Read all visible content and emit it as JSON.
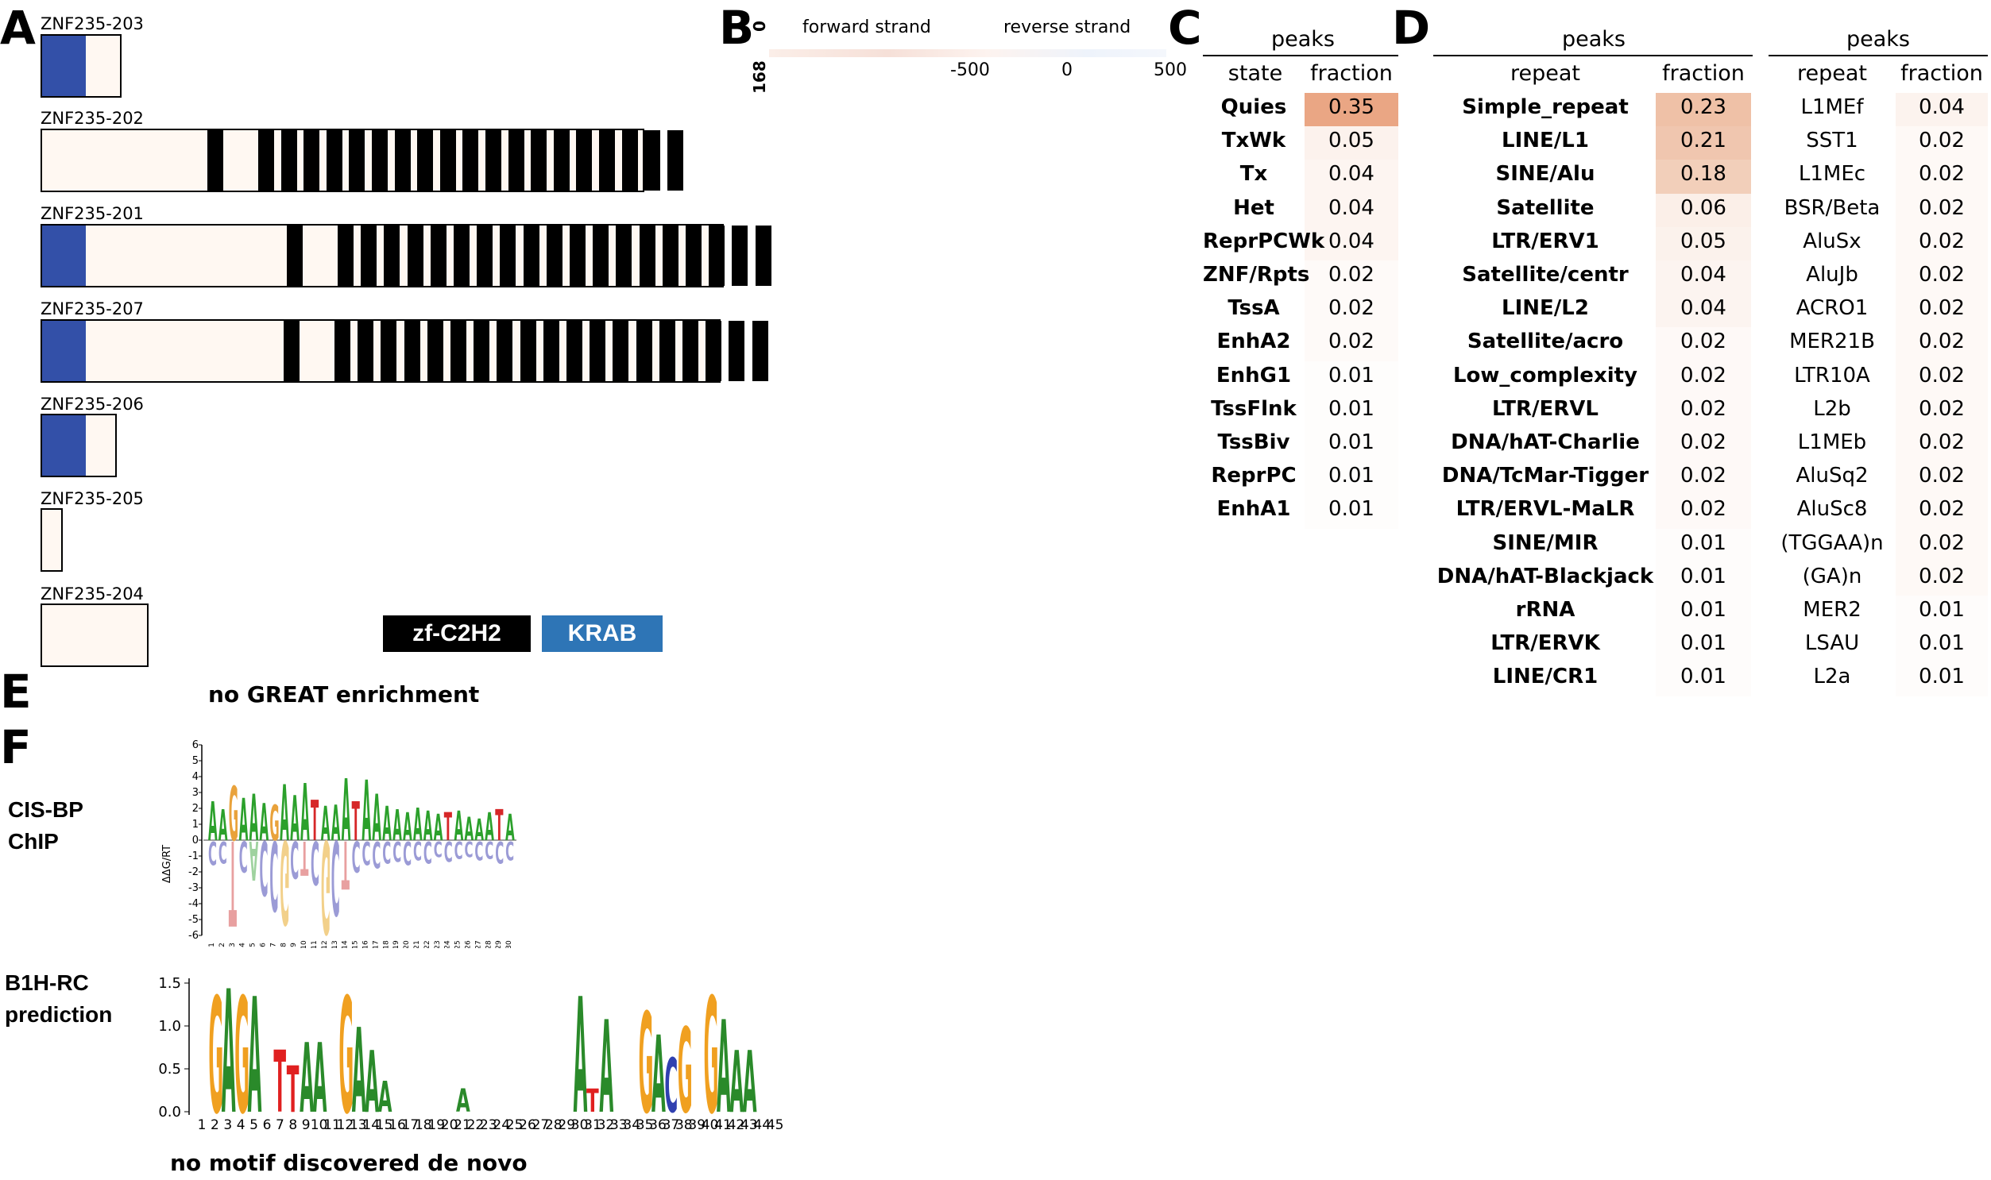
{
  "panels": {
    "A": "A",
    "B": "B",
    "C": "C",
    "D": "D",
    "E": "E",
    "F": "F"
  },
  "isoforms": [
    {
      "name": "ZNF235-203"
    },
    {
      "name": "ZNF235-202"
    },
    {
      "name": "ZNF235-201"
    },
    {
      "name": "ZNF235-207"
    },
    {
      "name": "ZNF235-206"
    },
    {
      "name": "ZNF235-205"
    },
    {
      "name": "ZNF235-204"
    }
  ],
  "legend": {
    "zf": "zf-C2H2",
    "krab": "KRAB",
    "zf_color": "#000000",
    "krab_color": "#2e75b6"
  },
  "panel_b": {
    "forward": "forward strand",
    "reverse": "reverse strand",
    "ticks": [
      "-500",
      "0",
      "500"
    ],
    "y_top": "0",
    "y_bottom": "168"
  },
  "panel_c": {
    "title": "peaks",
    "col1": "state",
    "col2": "fraction",
    "rows": [
      {
        "label": "Quies",
        "value": "0.35"
      },
      {
        "label": "TxWk",
        "value": "0.05"
      },
      {
        "label": "Tx",
        "value": "0.04"
      },
      {
        "label": "Het",
        "value": "0.04"
      },
      {
        "label": "ReprPCWk",
        "value": "0.04"
      },
      {
        "label": "ZNF/Rpts",
        "value": "0.02"
      },
      {
        "label": "TssA",
        "value": "0.02"
      },
      {
        "label": "EnhA2",
        "value": "0.02"
      },
      {
        "label": "EnhG1",
        "value": "0.01"
      },
      {
        "label": "TssFlnk",
        "value": "0.01"
      },
      {
        "label": "TssBiv",
        "value": "0.01"
      },
      {
        "label": "ReprPC",
        "value": "0.01"
      },
      {
        "label": "EnhA1",
        "value": "0.01"
      }
    ]
  },
  "panel_d1": {
    "title": "peaks",
    "col1": "repeat",
    "col2": "fraction",
    "rows": [
      {
        "label": "Simple_repeat",
        "value": "0.23"
      },
      {
        "label": "LINE/L1",
        "value": "0.21"
      },
      {
        "label": "SINE/Alu",
        "value": "0.18"
      },
      {
        "label": "Satellite",
        "value": "0.06"
      },
      {
        "label": "LTR/ERV1",
        "value": "0.05"
      },
      {
        "label": "Satellite/centr",
        "value": "0.04"
      },
      {
        "label": "LINE/L2",
        "value": "0.04"
      },
      {
        "label": "Satellite/acro",
        "value": "0.02"
      },
      {
        "label": "Low_complexity",
        "value": "0.02"
      },
      {
        "label": "LTR/ERVL",
        "value": "0.02"
      },
      {
        "label": "DNA/hAT-Charlie",
        "value": "0.02"
      },
      {
        "label": "DNA/TcMar-Tigger",
        "value": "0.02"
      },
      {
        "label": "LTR/ERVL-MaLR",
        "value": "0.02"
      },
      {
        "label": "SINE/MIR",
        "value": "0.01"
      },
      {
        "label": "DNA/hAT-Blackjack",
        "value": "0.01"
      },
      {
        "label": "rRNA",
        "value": "0.01"
      },
      {
        "label": "LTR/ERVK",
        "value": "0.01"
      },
      {
        "label": "LINE/CR1",
        "value": "0.01"
      }
    ]
  },
  "panel_d2": {
    "title": "peaks",
    "col1": "repeat",
    "col2": "fraction",
    "rows": [
      {
        "label": "L1MEf",
        "value": "0.04"
      },
      {
        "label": "SST1",
        "value": "0.02"
      },
      {
        "label": "L1MEc",
        "value": "0.02"
      },
      {
        "label": "BSR/Beta",
        "value": "0.02"
      },
      {
        "label": "AluSx",
        "value": "0.02"
      },
      {
        "label": "AluJb",
        "value": "0.02"
      },
      {
        "label": "ACRO1",
        "value": "0.02"
      },
      {
        "label": "MER21B",
        "value": "0.02"
      },
      {
        "label": "LTR10A",
        "value": "0.02"
      },
      {
        "label": "L2b",
        "value": "0.02"
      },
      {
        "label": "L1MEb",
        "value": "0.02"
      },
      {
        "label": "AluSq2",
        "value": "0.02"
      },
      {
        "label": "AluSc8",
        "value": "0.02"
      },
      {
        "label": "(TGGAA)n",
        "value": "0.02"
      },
      {
        "label": "(GA)n",
        "value": "0.02"
      },
      {
        "label": "MER2",
        "value": "0.01"
      },
      {
        "label": "LSAU",
        "value": "0.01"
      },
      {
        "label": "L2a",
        "value": "0.01"
      }
    ]
  },
  "panel_e": {
    "text": "no GREAT enrichment"
  },
  "panel_f": {
    "cisbp_label_1": "CIS-BP",
    "cisbp_label_2": "ChIP",
    "cisbp_ylabel": "ΔΔG/RT",
    "cisbp_yticks": [
      "6",
      "5",
      "4",
      "3",
      "2",
      "1",
      "0",
      "-1",
      "-2",
      "-3",
      "-4",
      "-5",
      "-6"
    ],
    "b1h_label_1": "B1H-RC",
    "b1h_label_2": "prediction",
    "b1h_yticks": [
      "1.5",
      "1.0",
      "0.5",
      "0.0"
    ],
    "b1h_xticks": [
      "1",
      "2",
      "3",
      "4",
      "5",
      "6",
      "7",
      "8",
      "9",
      "10",
      "11",
      "12",
      "13",
      "14",
      "15",
      "16",
      "17",
      "18",
      "19",
      "20",
      "21",
      "22",
      "23",
      "24",
      "25",
      "26",
      "27",
      "28",
      "29",
      "30",
      "31",
      "32",
      "33",
      "34",
      "35",
      "36",
      "37",
      "38",
      "39",
      "40",
      "41",
      "42",
      "43",
      "44",
      "45"
    ],
    "b1h_letters": "GAGATTAAGAAAATAGAGGAAA",
    "bottom_text": "no motif discovered de novo"
  }
}
